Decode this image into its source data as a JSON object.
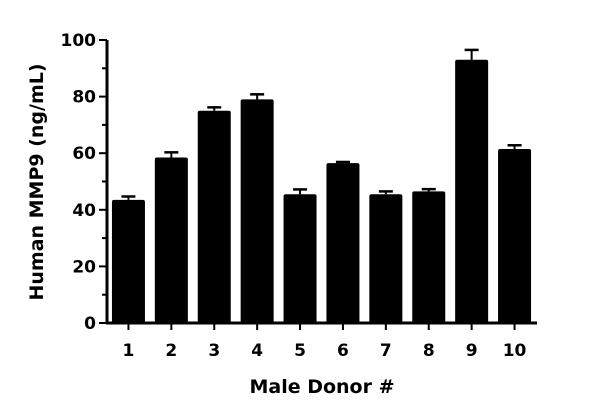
{
  "chart_data": {
    "type": "bar",
    "title": "",
    "xlabel": "Male Donor #",
    "ylabel": "Human MMP9 (ng/mL)",
    "categories": [
      "1",
      "2",
      "3",
      "4",
      "5",
      "6",
      "7",
      "8",
      "9",
      "10"
    ],
    "values": [
      43.5,
      58.5,
      75,
      79,
      45.5,
      56.5,
      45.5,
      46.5,
      93,
      61.5
    ],
    "error": [
      1.2,
      1.8,
      1.2,
      1.8,
      1.7,
      0.4,
      1.0,
      0.8,
      3.5,
      1.3
    ],
    "ylim": [
      0,
      100
    ],
    "yticks": [
      0,
      20,
      40,
      60,
      80,
      100
    ],
    "y_minor_ticks": [
      10,
      30,
      50,
      70,
      90
    ],
    "grid": false,
    "legend": null,
    "bar_color": "#000000",
    "error_bars": "upper only (SEM-style caps)"
  }
}
